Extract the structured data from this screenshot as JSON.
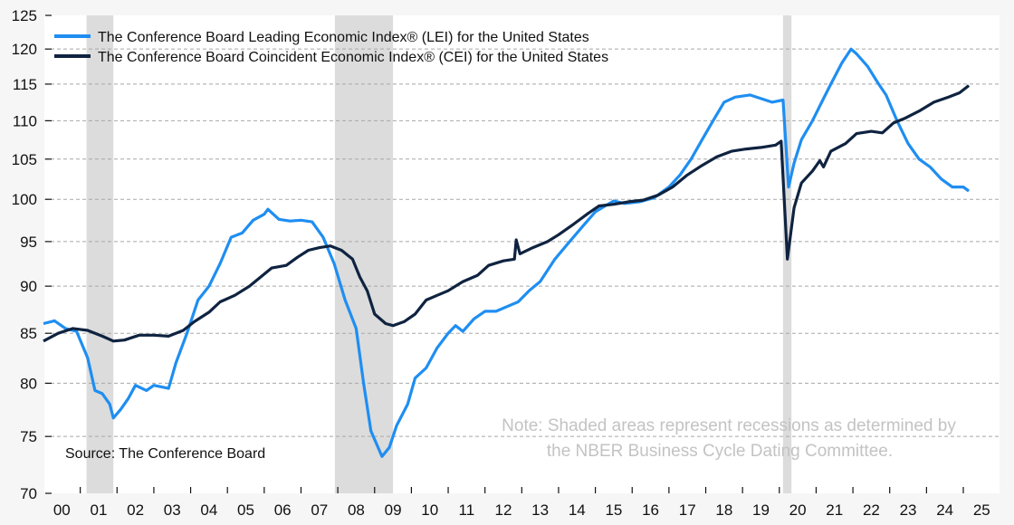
{
  "chart_data": {
    "type": "line",
    "title": "",
    "xlabel": "",
    "ylabel": "",
    "yscale": "log",
    "ylim": [
      70,
      125
    ],
    "xlim": [
      2000,
      2025.9
    ],
    "yticks": [
      70,
      75,
      80,
      85,
      90,
      95,
      100,
      105,
      110,
      115,
      120,
      125
    ],
    "xtick_labels": [
      "00",
      "01",
      "02",
      "03",
      "04",
      "05",
      "06",
      "07",
      "08",
      "09",
      "10",
      "11",
      "12",
      "13",
      "14",
      "15",
      "16",
      "17",
      "18",
      "19",
      "20",
      "21",
      "22",
      "23",
      "24",
      "25"
    ],
    "grid": true,
    "legend_position": "top-left",
    "recessions": [
      [
        2001.17,
        2001.9
      ],
      [
        2007.92,
        2009.5
      ],
      [
        2020.1,
        2020.33
      ]
    ],
    "series": [
      {
        "name": "The Conference Board Leading Economic Index® (LEI) for the United States",
        "color": "#1f8ef1",
        "x": [
          2000.0,
          2000.3,
          2000.6,
          2000.9,
          2001.2,
          2001.4,
          2001.6,
          2001.8,
          2001.9,
          2002.1,
          2002.3,
          2002.5,
          2002.8,
          2003.0,
          2003.4,
          2003.6,
          2003.9,
          2004.2,
          2004.5,
          2004.8,
          2005.1,
          2005.4,
          2005.7,
          2006.0,
          2006.1,
          2006.4,
          2006.7,
          2007.0,
          2007.3,
          2007.6,
          2007.9,
          2008.2,
          2008.5,
          2008.7,
          2008.9,
          2009.2,
          2009.4,
          2009.6,
          2009.9,
          2010.1,
          2010.4,
          2010.7,
          2011.0,
          2011.2,
          2011.4,
          2011.7,
          2012.0,
          2012.3,
          2012.6,
          2012.9,
          2013.2,
          2013.5,
          2013.9,
          2014.3,
          2014.7,
          2015.0,
          2015.3,
          2015.5,
          2015.8,
          2016.2,
          2016.6,
          2017.0,
          2017.3,
          2017.6,
          2017.9,
          2018.2,
          2018.5,
          2018.8,
          2019.2,
          2019.5,
          2019.8,
          2020.1,
          2020.25,
          2020.4,
          2020.6,
          2020.9,
          2021.2,
          2021.4,
          2021.7,
          2021.95,
          2022.1,
          2022.4,
          2022.7,
          2022.9,
          2023.2,
          2023.5,
          2023.8,
          2024.1,
          2024.4,
          2024.7,
          2025.0,
          2025.15
        ],
        "values": [
          86.0,
          86.3,
          85.5,
          85.2,
          82.5,
          79.3,
          79.0,
          78.0,
          76.7,
          77.5,
          78.5,
          79.8,
          79.3,
          79.8,
          79.5,
          82.0,
          85.0,
          88.5,
          90.0,
          92.5,
          95.5,
          96.0,
          97.5,
          98.2,
          98.8,
          97.6,
          97.4,
          97.5,
          97.3,
          95.5,
          92.5,
          88.5,
          85.5,
          80.0,
          75.5,
          73.2,
          74.0,
          76.0,
          78.0,
          80.5,
          81.5,
          83.5,
          85.0,
          85.8,
          85.2,
          86.5,
          87.3,
          87.3,
          87.8,
          88.3,
          89.5,
          90.5,
          93.0,
          95.0,
          97.0,
          98.5,
          99.3,
          99.8,
          99.5,
          99.7,
          100.2,
          101.5,
          103.0,
          105.0,
          107.5,
          110.0,
          112.5,
          113.2,
          113.5,
          113.0,
          112.5,
          112.8,
          101.5,
          104.5,
          107.5,
          110.0,
          113.0,
          115.0,
          118.0,
          120.0,
          119.3,
          117.5,
          115.0,
          113.5,
          110.0,
          107.0,
          105.0,
          104.0,
          102.5,
          101.5,
          101.5,
          101.0
        ]
      },
      {
        "name": "The Conference Board Coincident Economic Index® (CEI) for the United States",
        "color": "#0f2340",
        "x": [
          2000.0,
          2000.4,
          2000.8,
          2001.2,
          2001.6,
          2001.9,
          2002.2,
          2002.6,
          2003.0,
          2003.4,
          2003.8,
          2004.1,
          2004.5,
          2004.8,
          2005.2,
          2005.6,
          2005.9,
          2006.2,
          2006.6,
          2006.9,
          2007.2,
          2007.5,
          2007.8,
          2008.1,
          2008.4,
          2008.6,
          2008.8,
          2009.0,
          2009.3,
          2009.5,
          2009.8,
          2010.1,
          2010.4,
          2010.7,
          2011.0,
          2011.4,
          2011.8,
          2012.1,
          2012.5,
          2012.8,
          2012.85,
          2012.95,
          2013.3,
          2013.7,
          2014.0,
          2014.4,
          2014.8,
          2015.1,
          2015.5,
          2015.9,
          2016.3,
          2016.7,
          2017.1,
          2017.5,
          2017.9,
          2018.3,
          2018.7,
          2019.1,
          2019.5,
          2019.9,
          2020.05,
          2020.22,
          2020.4,
          2020.6,
          2020.9,
          2021.1,
          2021.2,
          2021.4,
          2021.8,
          2022.1,
          2022.5,
          2022.8,
          2023.1,
          2023.4,
          2023.8,
          2024.2,
          2024.6,
          2024.9,
          2025.15
        ],
        "values": [
          84.2,
          85.0,
          85.5,
          85.3,
          84.7,
          84.2,
          84.3,
          84.8,
          84.8,
          84.7,
          85.3,
          86.2,
          87.2,
          88.3,
          89.0,
          90.0,
          91.0,
          92.0,
          92.3,
          93.2,
          94.0,
          94.3,
          94.5,
          94.0,
          93.0,
          91.0,
          89.5,
          87.0,
          86.0,
          85.8,
          86.2,
          87.0,
          88.5,
          89.0,
          89.5,
          90.5,
          91.2,
          92.3,
          92.8,
          93.0,
          95.2,
          93.6,
          94.3,
          95.0,
          95.8,
          97.0,
          98.3,
          99.2,
          99.4,
          99.7,
          99.9,
          100.5,
          101.5,
          103.0,
          104.2,
          105.3,
          106.0,
          106.3,
          106.5,
          106.8,
          107.3,
          93.0,
          99.0,
          102.0,
          103.5,
          104.8,
          104.0,
          106.0,
          107.0,
          108.3,
          108.6,
          108.4,
          109.7,
          110.3,
          111.3,
          112.5,
          113.2,
          113.8,
          114.8
        ]
      }
    ],
    "annotations": {
      "source": "Source: The Conference Board",
      "note_line1": "Note: Shaded areas represent recessions as determined by",
      "note_line2": "the NBER Business Cycle Dating Committee."
    }
  }
}
